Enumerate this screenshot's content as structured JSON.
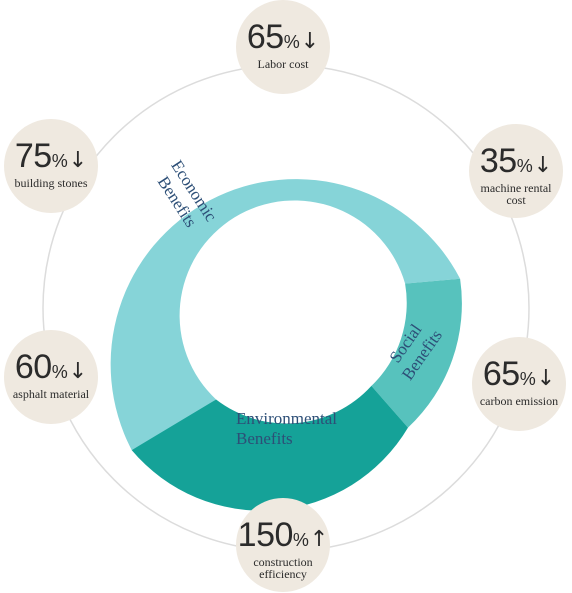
{
  "segments": [
    {
      "line1": "Economic",
      "line2": "Benefits"
    },
    {
      "line1": "Social",
      "line2": "Benefits"
    },
    {
      "line1": "Environmental",
      "line2": "Benefits"
    }
  ],
  "badges": [
    {
      "value": "65",
      "unit": "%",
      "arrow": "↓",
      "caption": "Labor cost"
    },
    {
      "value": "35",
      "unit": "%",
      "arrow": "↓",
      "caption": "machine rental cost"
    },
    {
      "value": "65",
      "unit": "%",
      "arrow": "↓",
      "caption": "carbon emission"
    },
    {
      "value": "150",
      "unit": "%",
      "arrow": "↑",
      "caption": "construction efficiency"
    },
    {
      "value": "60",
      "unit": "%",
      "arrow": "↓",
      "caption": "asphalt material"
    },
    {
      "value": "75",
      "unit": "%",
      "arrow": "↓",
      "caption": "building stones"
    }
  ],
  "colors": {
    "economic": "#86d4d8",
    "social": "#57c2bd",
    "environmental": "#15a298",
    "badge_bg": "#efe9e0",
    "ring_line": "#dcdcdc",
    "label_text": "#2d4f77"
  }
}
